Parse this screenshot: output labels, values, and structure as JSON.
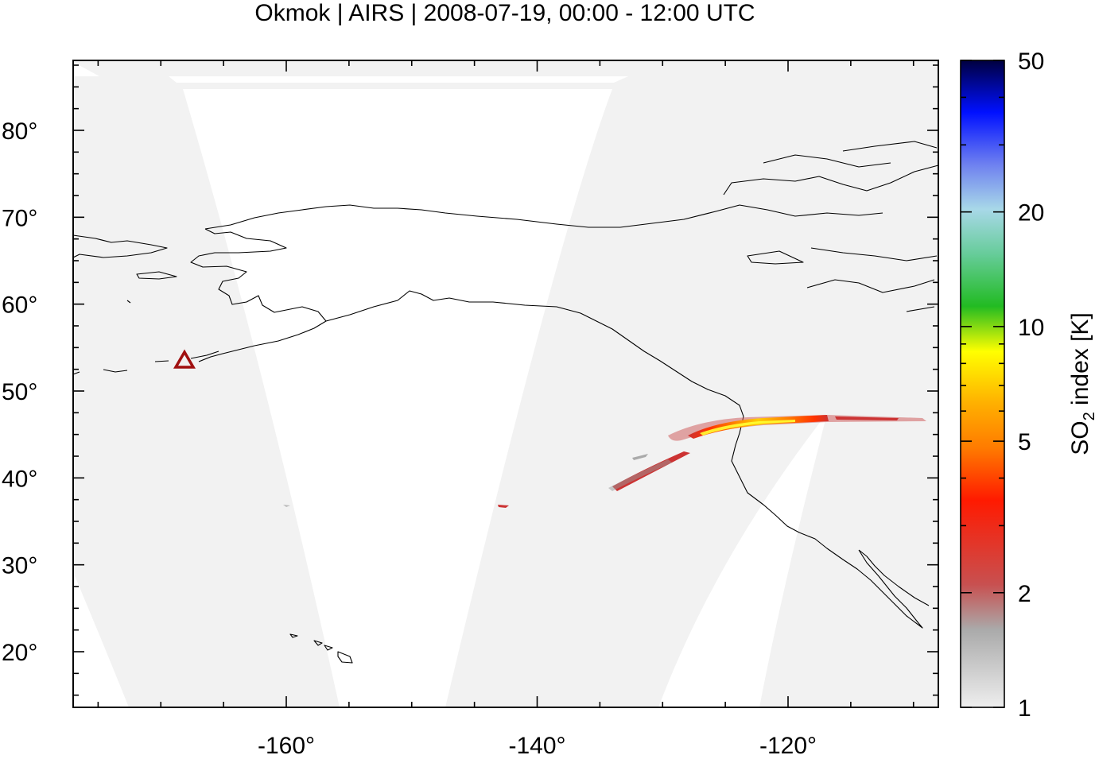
{
  "title": "Okmok | AIRS | 2008-07-19, 00:00 - 12:00 UTC",
  "map": {
    "background": "#f2f2f2",
    "x_ticks": [
      {
        "value": -160,
        "label": "-160°"
      },
      {
        "value": -140,
        "label": "-140°"
      },
      {
        "value": -120,
        "label": "-120°"
      }
    ],
    "y_ticks": [
      {
        "value": 80,
        "label": "80°"
      },
      {
        "value": 70,
        "label": "70°"
      },
      {
        "value": 60,
        "label": "60°"
      },
      {
        "value": 50,
        "label": "50°"
      },
      {
        "value": 40,
        "label": "40°"
      },
      {
        "value": 30,
        "label": "30°"
      },
      {
        "value": 20,
        "label": "20°"
      }
    ],
    "volcano_marker": {
      "name": "Okmok",
      "lon": -168.1,
      "lat": 53.4,
      "color": "#a01010"
    }
  },
  "colorbar": {
    "label_main": "SO",
    "label_sub": "2",
    "label_rest": " index [K]",
    "scale": "log",
    "range": [
      1,
      50
    ],
    "ticks": [
      {
        "value": 50,
        "label": "50"
      },
      {
        "value": 20,
        "label": "20"
      },
      {
        "value": 10,
        "label": "10"
      },
      {
        "value": 5,
        "label": "5"
      },
      {
        "value": 2,
        "label": "2"
      },
      {
        "value": 1,
        "label": "1"
      }
    ],
    "colors": [
      "#eeeeee",
      "#999999",
      "#cc4444",
      "#ff1a00",
      "#ff8c00",
      "#ffff00",
      "#00bb00",
      "#a8d8e8",
      "#5a6fe6",
      "#0010ff",
      "#000040"
    ]
  }
}
